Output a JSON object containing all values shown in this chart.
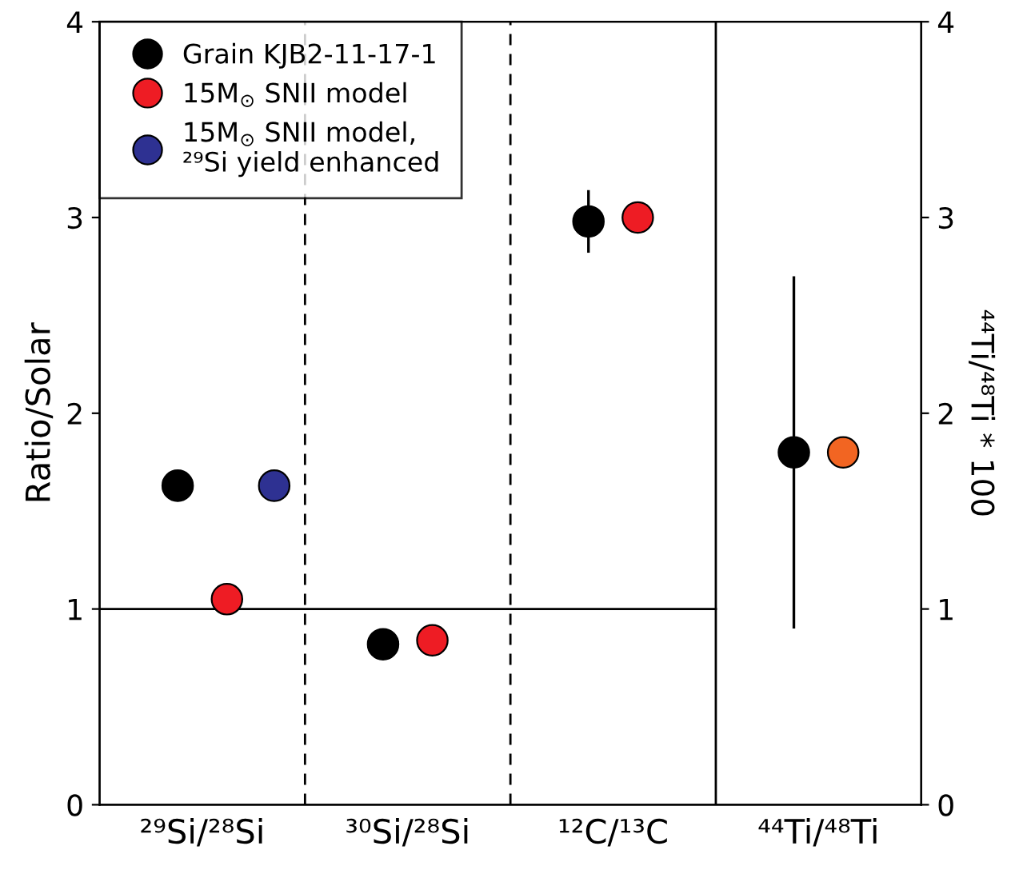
{
  "chart_data": {
    "type": "scatter",
    "categories": [
      "²⁹Si/²⁸Si",
      "³⁰Si/²⁸Si",
      "¹²C/¹³C",
      "⁴⁴Ti/⁴⁸Ti"
    ],
    "ylabel": "Ratio/Solar",
    "y2label": "⁴⁴Ti/⁴⁸Ti * 100",
    "ylim": [
      0,
      4
    ],
    "yticks": [
      0,
      1,
      2,
      3,
      4
    ],
    "y2lim": [
      0,
      4
    ],
    "y2ticks": [
      0,
      1,
      2,
      3,
      4
    ],
    "series": [
      {
        "name": "Grain KJB2-11-17-1",
        "color": "#000000",
        "values": [
          1.63,
          0.82,
          2.98,
          1.8
        ],
        "errors": [
          null,
          null,
          0.16,
          0.9
        ]
      },
      {
        "name": "15M$_{⊙}$ SNII model",
        "color": "#ee1c24",
        "colors": [
          "#ee1c24",
          "#ee1c24",
          "#ee1c24",
          "#f26522"
        ],
        "values": [
          1.05,
          0.84,
          3.0,
          1.8
        ]
      },
      {
        "name": "15M$_{⊙}$ SNII model,\n²⁹Si yield enhanced",
        "color": "#2e3192",
        "values": [
          1.63,
          null,
          null,
          null
        ]
      }
    ],
    "ref_lines": [
      {
        "axis": "y",
        "value": 1,
        "line_style": "solid"
      }
    ],
    "marker": "circle",
    "legend": "top left",
    "grid": false
  }
}
